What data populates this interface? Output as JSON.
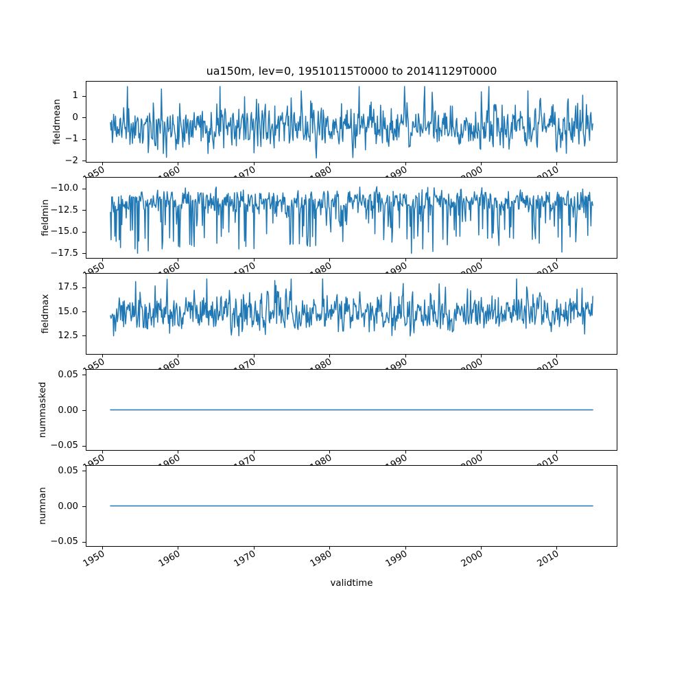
{
  "figure": {
    "title": "ua150m, lev=0, 19510115T0000 to 20141129T0000",
    "xlabel": "validtime",
    "background": "#ffffff",
    "text_color": "#000000",
    "line_color": "#1f77b4"
  },
  "x_axis": {
    "label": "validtime",
    "xlim": [
      1947.86,
      2018.08
    ],
    "ticks": [
      {
        "value": 1950,
        "label": "1950"
      },
      {
        "value": 1960,
        "label": "1960"
      },
      {
        "value": 1970,
        "label": "1970"
      },
      {
        "value": 1980,
        "label": "1980"
      },
      {
        "value": 1990,
        "label": "1990"
      },
      {
        "value": 2000,
        "label": "2000"
      },
      {
        "value": 2010,
        "label": "2010"
      }
    ],
    "tick_rotation_deg": 30,
    "data_start": 1951.04,
    "data_end": 2014.91,
    "n_points": 767,
    "cadence": "monthly"
  },
  "chart_data": [
    {
      "type": "line",
      "series_name": "fieldmean",
      "ylabel": "fieldmean",
      "yticks": [
        {
          "value": 1,
          "label": "1"
        },
        {
          "value": 0,
          "label": "0"
        },
        {
          "value": -1,
          "label": "−1"
        },
        {
          "value": -2,
          "label": "−2"
        }
      ],
      "ylim": [
        -2.1,
        1.68
      ],
      "grid": false,
      "constant": null,
      "stats": {
        "mean": -0.45,
        "std": 0.5,
        "min": -1.95,
        "max": 1.45
      },
      "synthesis": {
        "seed": 11,
        "ar": 0.25,
        "spike_prob": 0.05,
        "spike_sign": 1,
        "spike_min": 0.6,
        "spike_max": 1.9
      }
    },
    {
      "type": "line",
      "series_name": "fieldmin",
      "ylabel": "fieldmin",
      "yticks": [
        {
          "value": -10.0,
          "label": "−10.0"
        },
        {
          "value": -12.5,
          "label": "−12.5"
        },
        {
          "value": -15.0,
          "label": "−15.0"
        },
        {
          "value": -17.5,
          "label": "−17.5"
        }
      ],
      "ylim": [
        -18.15,
        -8.72
      ],
      "grid": false,
      "constant": null,
      "stats": {
        "mean": -11.4,
        "std": 0.65,
        "min": -17.6,
        "max": -9.3
      },
      "synthesis": {
        "seed": 12,
        "ar": 0.2,
        "spike_prob": 0.17,
        "spike_sign": -1,
        "spike_min": 1.2,
        "spike_max": 5.6
      }
    },
    {
      "type": "line",
      "series_name": "fieldmax",
      "ylabel": "fieldmax",
      "yticks": [
        {
          "value": 17.5,
          "label": "17.5"
        },
        {
          "value": 15.0,
          "label": "15.0"
        },
        {
          "value": 12.5,
          "label": "12.5"
        }
      ],
      "ylim": [
        10.5,
        18.95
      ],
      "grid": false,
      "constant": null,
      "stats": {
        "mean": 14.85,
        "std": 0.95,
        "min": 10.9,
        "max": 18.4
      },
      "synthesis": {
        "seed": 13,
        "ar": 0.25,
        "spike_prob": 0.05,
        "spike_sign": 1,
        "spike_min": 1.2,
        "spike_max": 3.2
      }
    },
    {
      "type": "line",
      "series_name": "nummasked",
      "ylabel": "nummasked",
      "yticks": [
        {
          "value": 0.05,
          "label": "0.05"
        },
        {
          "value": 0.0,
          "label": "0.00"
        },
        {
          "value": -0.05,
          "label": "−0.05"
        }
      ],
      "ylim": [
        -0.0575,
        0.0575
      ],
      "grid": false,
      "constant": 0,
      "stats": {
        "mean": 0,
        "std": 0,
        "min": 0,
        "max": 0
      },
      "synthesis": null
    },
    {
      "type": "line",
      "series_name": "numnan",
      "ylabel": "numnan",
      "yticks": [
        {
          "value": 0.05,
          "label": "0.05"
        },
        {
          "value": 0.0,
          "label": "0.00"
        },
        {
          "value": -0.05,
          "label": "−0.05"
        }
      ],
      "ylim": [
        -0.0575,
        0.0575
      ],
      "grid": false,
      "constant": 0,
      "stats": {
        "mean": 0,
        "std": 0,
        "min": 0,
        "max": 0
      },
      "synthesis": null
    }
  ]
}
